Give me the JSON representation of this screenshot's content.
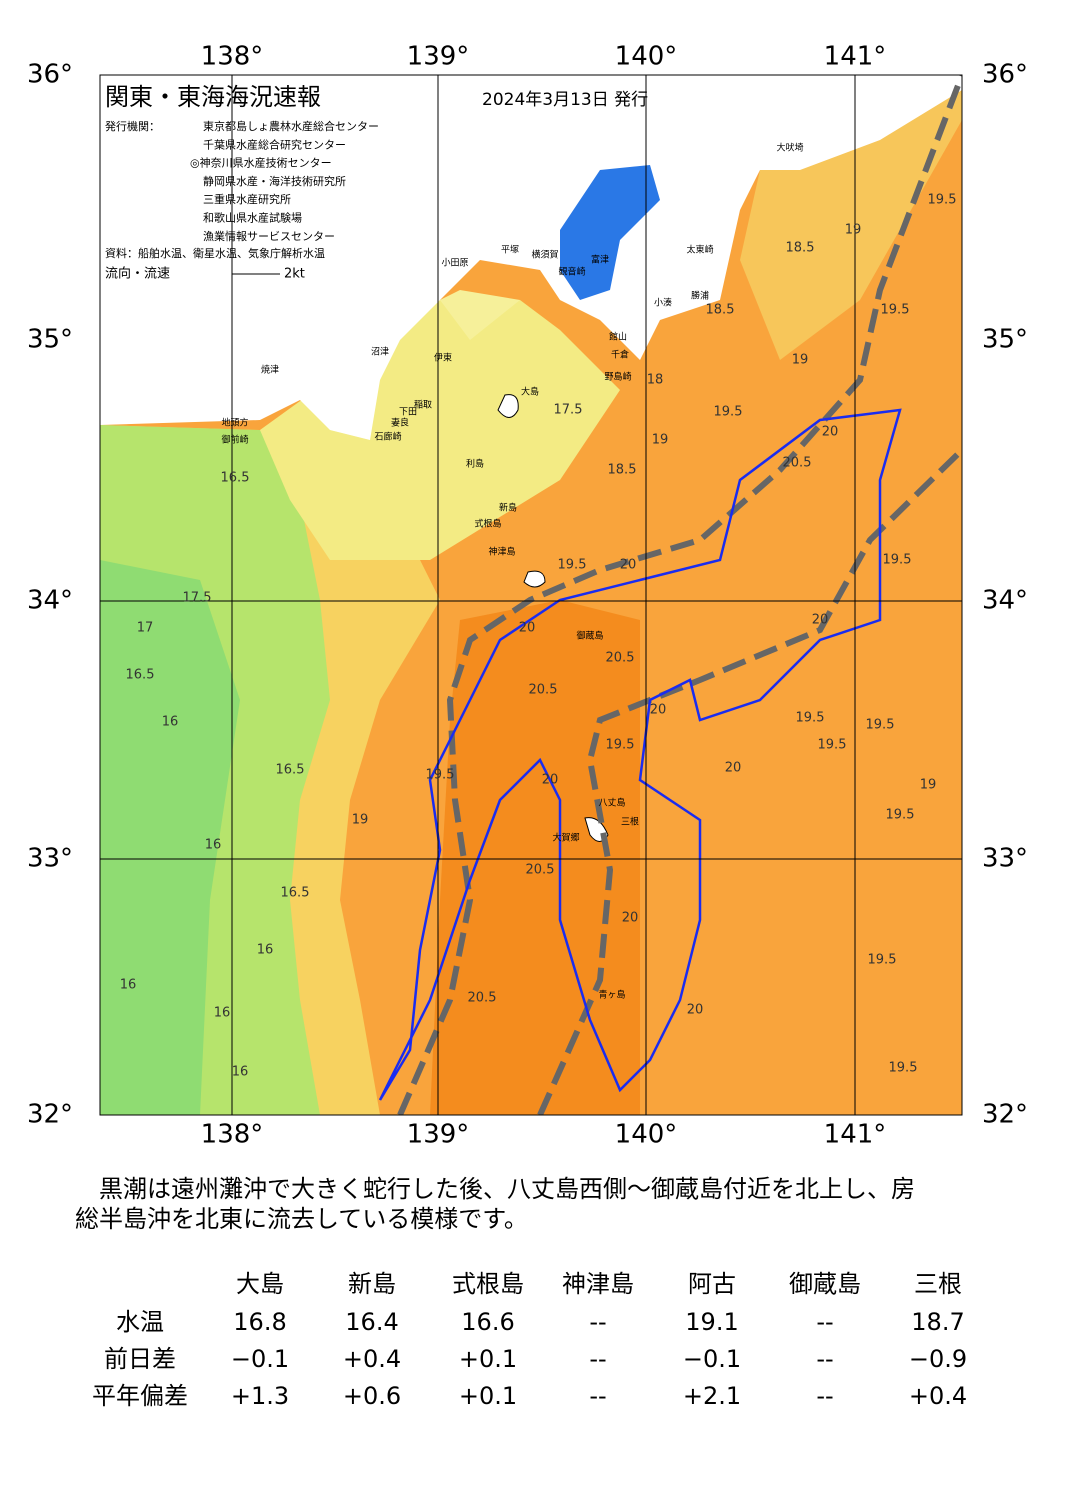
{
  "header": {
    "title": "関東・東海海況速報",
    "date": "2024年3月13日 発行",
    "issuer_label": "発行機関：",
    "issuers": [
      "東京都島しょ農林水産総合センター",
      "千葉県水産総合研究センター",
      "◎神奈川県水産技術センター",
      "静岡県水産・海洋技術研究所",
      "三重県水産研究所",
      "和歌山県水産試験場",
      "漁業情報サービスセンター"
    ],
    "source": "資料：船舶水温、衛星水温、気象庁解析水温",
    "flow": "流向・流速",
    "flow_scale": "2kt"
  },
  "map": {
    "lon_labels": [
      "138°",
      "139°",
      "140°",
      "141°"
    ],
    "lat_labels": [
      "36°",
      "35°",
      "34°",
      "33°",
      "32°"
    ],
    "places": [
      "大島",
      "利島",
      "新島",
      "式根島",
      "神津島",
      "御蔵島",
      "八丈島",
      "三根",
      "大賀郷",
      "青ヶ島",
      "大吠埼",
      "太東崎",
      "勝浦",
      "小湊",
      "館山",
      "千倉",
      "野島崎",
      "富津",
      "横須賀",
      "平塚",
      "小田原",
      "観音崎",
      "稲取",
      "下田",
      "石廊崎",
      "妻良",
      "伊東",
      "沼津",
      "焼津",
      "御前崎",
      "地頭方"
    ],
    "contour_labels": [
      "16.5",
      "17.5",
      "17",
      "16.5",
      "16",
      "16.5",
      "16",
      "16.5",
      "16",
      "16",
      "16",
      "16",
      "17.5",
      "18",
      "18.5",
      "19",
      "19.5",
      "20",
      "20.5",
      "20",
      "19.5",
      "20",
      "20.5",
      "20.5",
      "20",
      "19.5",
      "19.5",
      "19.5",
      "19.5",
      "20",
      "19",
      "19.5",
      "20",
      "19.5",
      "19",
      "20.5",
      "20",
      "20.5",
      "20",
      "19.5",
      "19.5",
      "19.5",
      "19",
      "19.5",
      "18.5",
      "18.5",
      "19",
      "20",
      "19.5"
    ]
  },
  "commentary": [
    "　黒潮は遠州灘沖で大きく蛇行した後、八丈島西側～御蔵島付近を北上し、房",
    "総半島沖を北東に流去している模様です。"
  ],
  "table": {
    "columns": [
      "大島",
      "新島",
      "式根島",
      "神津島",
      "阿古",
      "御蔵島",
      "三根"
    ],
    "rows": [
      {
        "label": "水温",
        "cells": [
          "16.8",
          "16.4",
          "16.6",
          "--",
          "19.1",
          "--",
          "18.7"
        ]
      },
      {
        "label": "前日差",
        "cells": [
          "−0.1",
          "+0.4",
          "+0.1",
          "--",
          "−0.1",
          "--",
          "−0.9"
        ]
      },
      {
        "label": "平年偏差",
        "cells": [
          "+1.3",
          "+0.6",
          "+0.1",
          "--",
          "+2.1",
          "--",
          "+0.4"
        ]
      }
    ]
  }
}
